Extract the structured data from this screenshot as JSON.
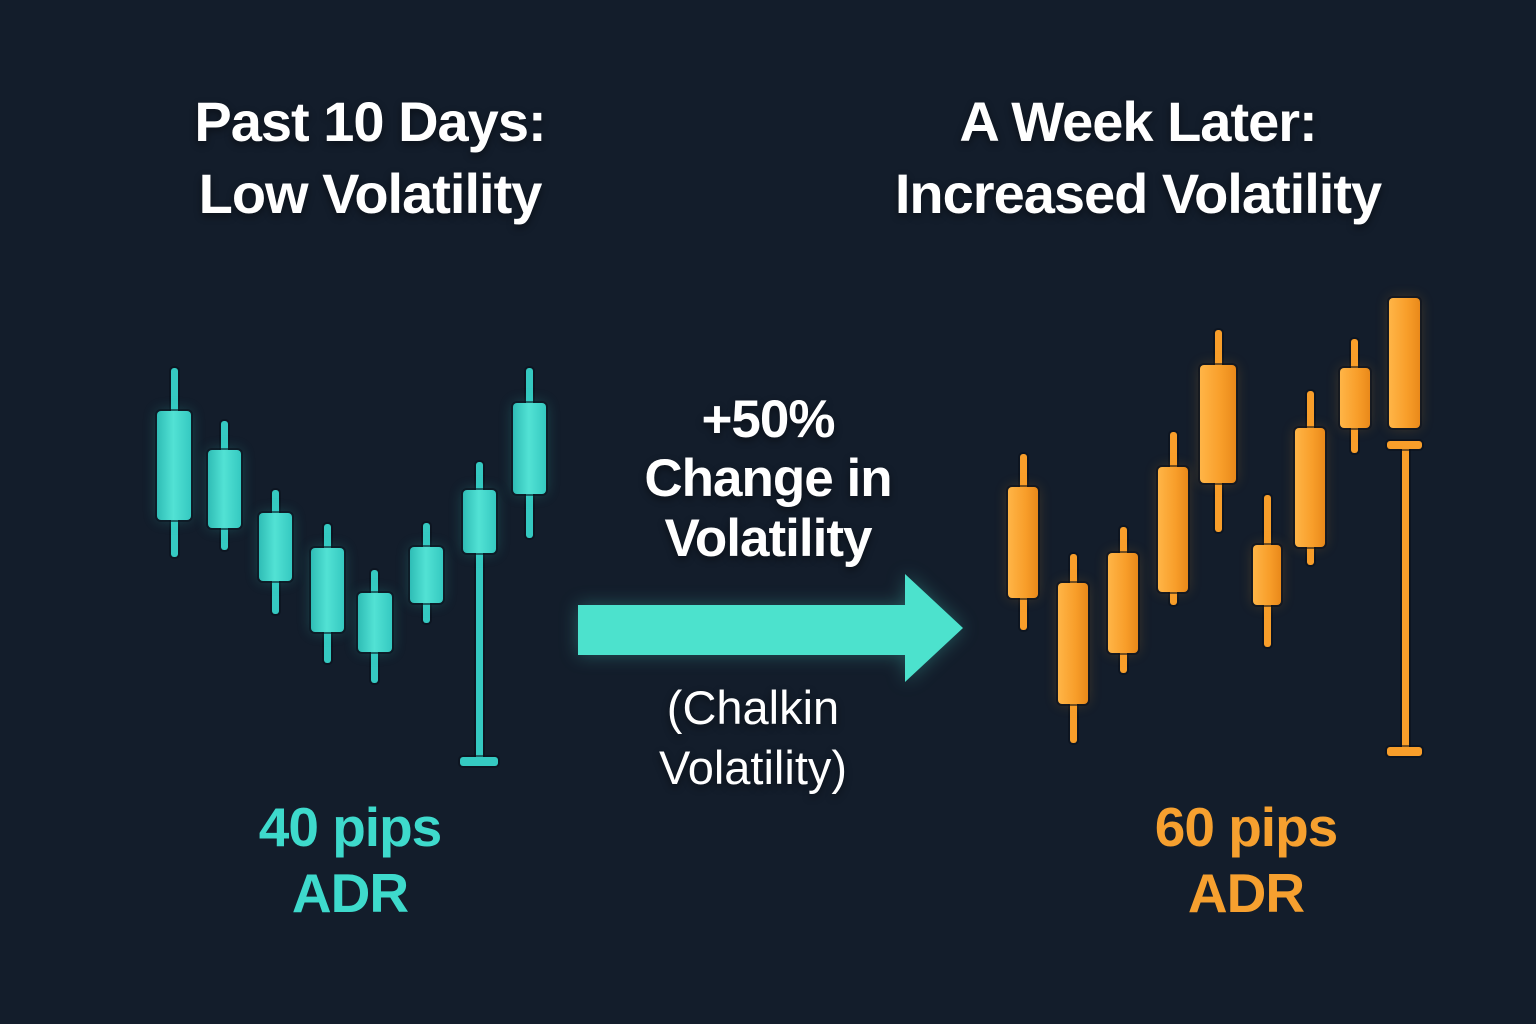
{
  "colors": {
    "background": "#131d2b",
    "title_text": "#ffffff",
    "teal_main": "#35c9c1",
    "teal_bright": "#52e2d4",
    "teal_deep": "#2fbdb6",
    "teal_text": "#3edacc",
    "arrow_teal": "#4ce2cd",
    "orange_main": "#f89e2a",
    "orange_bright": "#ffb547",
    "orange_deep": "#e9891a",
    "orange_text": "#f6a02f"
  },
  "left_panel": {
    "title_line1": "Past 10 Days:",
    "title_line2": "Low Volatility",
    "adr_line1": "40 pips",
    "adr_line2": "ADR"
  },
  "right_panel": {
    "title_line1": "A Week Later:",
    "title_line2": "Increased Volatility",
    "adr_line1": "60 pips",
    "adr_line2": "ADR"
  },
  "center": {
    "change_line1": "+50%",
    "change_line2": "Change in",
    "change_line3": "Volatility",
    "indicator_line1": "(Chalkin",
    "indicator_line2": "Volatility)",
    "arrow_icon": "right-arrow"
  },
  "chart_data": [
    {
      "id": "left",
      "type": "candlestick",
      "label": "Past 10 Days: Low Volatility",
      "adr_pips": 40,
      "color": "teal",
      "units": "canvas pixels [x,y,w,h]",
      "candles": [
        {
          "body": [
            157,
            411,
            34,
            109
          ],
          "upper_wick": [
            171,
            368,
            7,
            47
          ],
          "lower_wick": [
            171,
            516,
            7,
            41
          ],
          "caps": []
        },
        {
          "body": [
            208,
            450,
            33,
            78
          ],
          "upper_wick": [
            221,
            421,
            7,
            33
          ],
          "lower_wick": [
            221,
            524,
            7,
            26
          ],
          "caps": []
        },
        {
          "body": [
            259,
            513,
            33,
            68
          ],
          "upper_wick": [
            272,
            490,
            7,
            27
          ],
          "lower_wick": [
            272,
            577,
            7,
            37
          ],
          "caps": []
        },
        {
          "body": [
            311,
            548,
            33,
            84
          ],
          "upper_wick": [
            324,
            524,
            7,
            28
          ],
          "lower_wick": [
            324,
            628,
            7,
            35
          ],
          "caps": []
        },
        {
          "body": [
            358,
            593,
            34,
            59
          ],
          "upper_wick": [
            371,
            570,
            7,
            27
          ],
          "lower_wick": [
            371,
            648,
            7,
            35
          ],
          "caps": []
        },
        {
          "body": [
            410,
            547,
            33,
            56
          ],
          "upper_wick": [
            423,
            523,
            7,
            28
          ],
          "lower_wick": [
            423,
            599,
            7,
            24
          ],
          "caps": []
        },
        {
          "body": [
            463,
            490,
            33,
            63
          ],
          "upper_wick": [
            476,
            462,
            7,
            32
          ],
          "lower_wick": [
            476,
            549,
            7,
            212
          ],
          "caps": [
            [
              460,
              757,
              38,
              9
            ]
          ]
        },
        {
          "body": [
            513,
            403,
            33,
            91
          ],
          "upper_wick": [
            526,
            368,
            7,
            39
          ],
          "lower_wick": [
            526,
            490,
            7,
            48
          ],
          "caps": []
        }
      ]
    },
    {
      "id": "right",
      "type": "candlestick",
      "label": "A Week Later: Increased Volatility",
      "adr_pips": 60,
      "color": "orange",
      "units": "canvas pixels [x,y,w,h]",
      "candles": [
        {
          "body": [
            1008,
            487,
            30,
            111
          ],
          "upper_wick": [
            1020,
            454,
            7,
            37
          ],
          "lower_wick": [
            1020,
            594,
            7,
            36
          ],
          "caps": []
        },
        {
          "body": [
            1058,
            583,
            30,
            121
          ],
          "upper_wick": [
            1070,
            554,
            7,
            33
          ],
          "lower_wick": [
            1070,
            700,
            7,
            43
          ],
          "caps": []
        },
        {
          "body": [
            1108,
            553,
            30,
            100
          ],
          "upper_wick": [
            1120,
            527,
            7,
            30
          ],
          "lower_wick": [
            1120,
            649,
            7,
            24
          ],
          "caps": []
        },
        {
          "body": [
            1158,
            467,
            30,
            125
          ],
          "upper_wick": [
            1170,
            432,
            7,
            39
          ],
          "lower_wick": [
            1170,
            588,
            7,
            17
          ],
          "caps": []
        },
        {
          "body": [
            1200,
            365,
            36,
            118
          ],
          "upper_wick": [
            1215,
            330,
            7,
            39
          ],
          "lower_wick": [
            1215,
            479,
            7,
            53
          ],
          "caps": []
        },
        {
          "body": [
            1253,
            545,
            28,
            60
          ],
          "upper_wick": [
            1264,
            495,
            7,
            54
          ],
          "lower_wick": [
            1264,
            601,
            7,
            46
          ],
          "caps": []
        },
        {
          "body": [
            1295,
            428,
            30,
            119
          ],
          "upper_wick": [
            1307,
            391,
            7,
            41
          ],
          "lower_wick": [
            1307,
            543,
            7,
            22
          ],
          "caps": []
        },
        {
          "body": [
            1340,
            368,
            30,
            60
          ],
          "upper_wick": [
            1351,
            339,
            7,
            33
          ],
          "lower_wick": [
            1351,
            424,
            7,
            29
          ],
          "caps": []
        },
        {
          "body": [
            1389,
            298,
            31,
            130
          ],
          "upper_wick": null,
          "lower_wick": [
            1402,
            446,
            7,
            305
          ],
          "caps": [
            [
              1387,
              441,
              35,
              8
            ],
            [
              1387,
              747,
              35,
              9
            ]
          ]
        }
      ]
    }
  ]
}
